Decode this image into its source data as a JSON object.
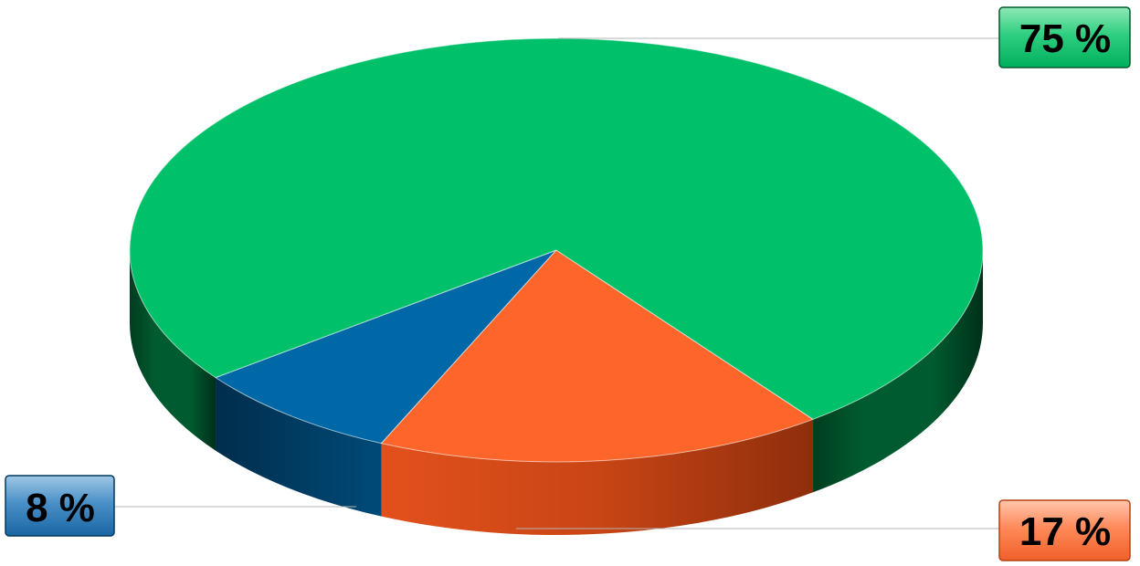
{
  "chart_data": {
    "type": "pie",
    "style": "3d",
    "title": "",
    "slices": [
      {
        "value": 75,
        "label": "75 %",
        "color": "#00c16a",
        "side_color": "#005a2e"
      },
      {
        "value": 17,
        "label": "17 %",
        "color": "#fd652a",
        "side_color": "#b8410f"
      },
      {
        "value": 8,
        "label": "8 %",
        "color": "#0068a6",
        "side_color": "#00385d"
      }
    ],
    "legend": "none"
  }
}
